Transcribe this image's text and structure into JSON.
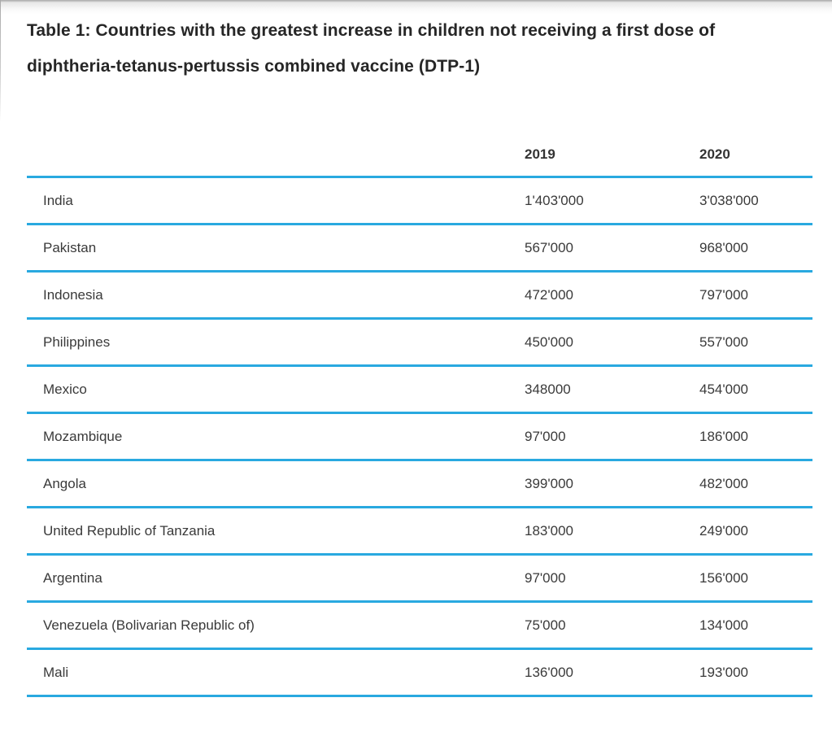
{
  "page": {
    "title": "Table 1: Countries with the greatest increase in children not receiving a first dose of diphtheria-tetanus-pertussis combined vaccine (DTP-1)"
  },
  "table": {
    "columns": {
      "country": "",
      "y2019": "2019",
      "y2020": "2020"
    },
    "rows": [
      {
        "country": "India",
        "y2019": "1'403'000",
        "y2020": "3'038'000"
      },
      {
        "country": "Pakistan",
        "y2019": "567'000",
        "y2020": "968'000"
      },
      {
        "country": "Indonesia",
        "y2019": "472'000",
        "y2020": "797'000"
      },
      {
        "country": "Philippines",
        "y2019": "450'000",
        "y2020": "557'000"
      },
      {
        "country": "Mexico",
        "y2019": "348000",
        "y2020": "454'000"
      },
      {
        "country": "Mozambique",
        "y2019": "97'000",
        "y2020": "186'000"
      },
      {
        "country": "Angola",
        "y2019": "399'000",
        "y2020": "482'000"
      },
      {
        "country": "United Republic of Tanzania",
        "y2019": "183'000",
        "y2020": "249'000"
      },
      {
        "country": "Argentina",
        "y2019": "97'000",
        "y2020": "156'000"
      },
      {
        "country": "Venezuela (Bolivarian Republic of)",
        "y2019": "75'000",
        "y2020": "134'000"
      },
      {
        "country": "Mali",
        "y2019": "136'000",
        "y2020": "193'000"
      }
    ]
  },
  "colors": {
    "accent_line": "#29A9E0",
    "title_text": "#262626",
    "body_text": "#3A3A3A"
  },
  "chart_data": {
    "type": "table",
    "title": "Table 1: Countries with the greatest increase in children not receiving a first dose of diphtheria-tetanus-pertussis combined vaccine (DTP-1)",
    "columns": [
      "Country",
      "2019",
      "2020"
    ],
    "categories": [
      "India",
      "Pakistan",
      "Indonesia",
      "Philippines",
      "Mexico",
      "Mozambique",
      "Angola",
      "United Republic of Tanzania",
      "Argentina",
      "Venezuela (Bolivarian Republic of)",
      "Mali"
    ],
    "series": [
      {
        "name": "2019",
        "values": [
          1403000,
          567000,
          472000,
          450000,
          348000,
          97000,
          399000,
          183000,
          97000,
          75000,
          136000
        ]
      },
      {
        "name": "2020",
        "values": [
          3038000,
          968000,
          797000,
          557000,
          454000,
          186000,
          482000,
          249000,
          156000,
          134000,
          193000
        ]
      }
    ],
    "layout": {
      "grid": "horizontal-rules-only",
      "rule_color": "#29A9E0",
      "header_style": "bold",
      "number_format": "apostrophe thousands separator"
    }
  }
}
